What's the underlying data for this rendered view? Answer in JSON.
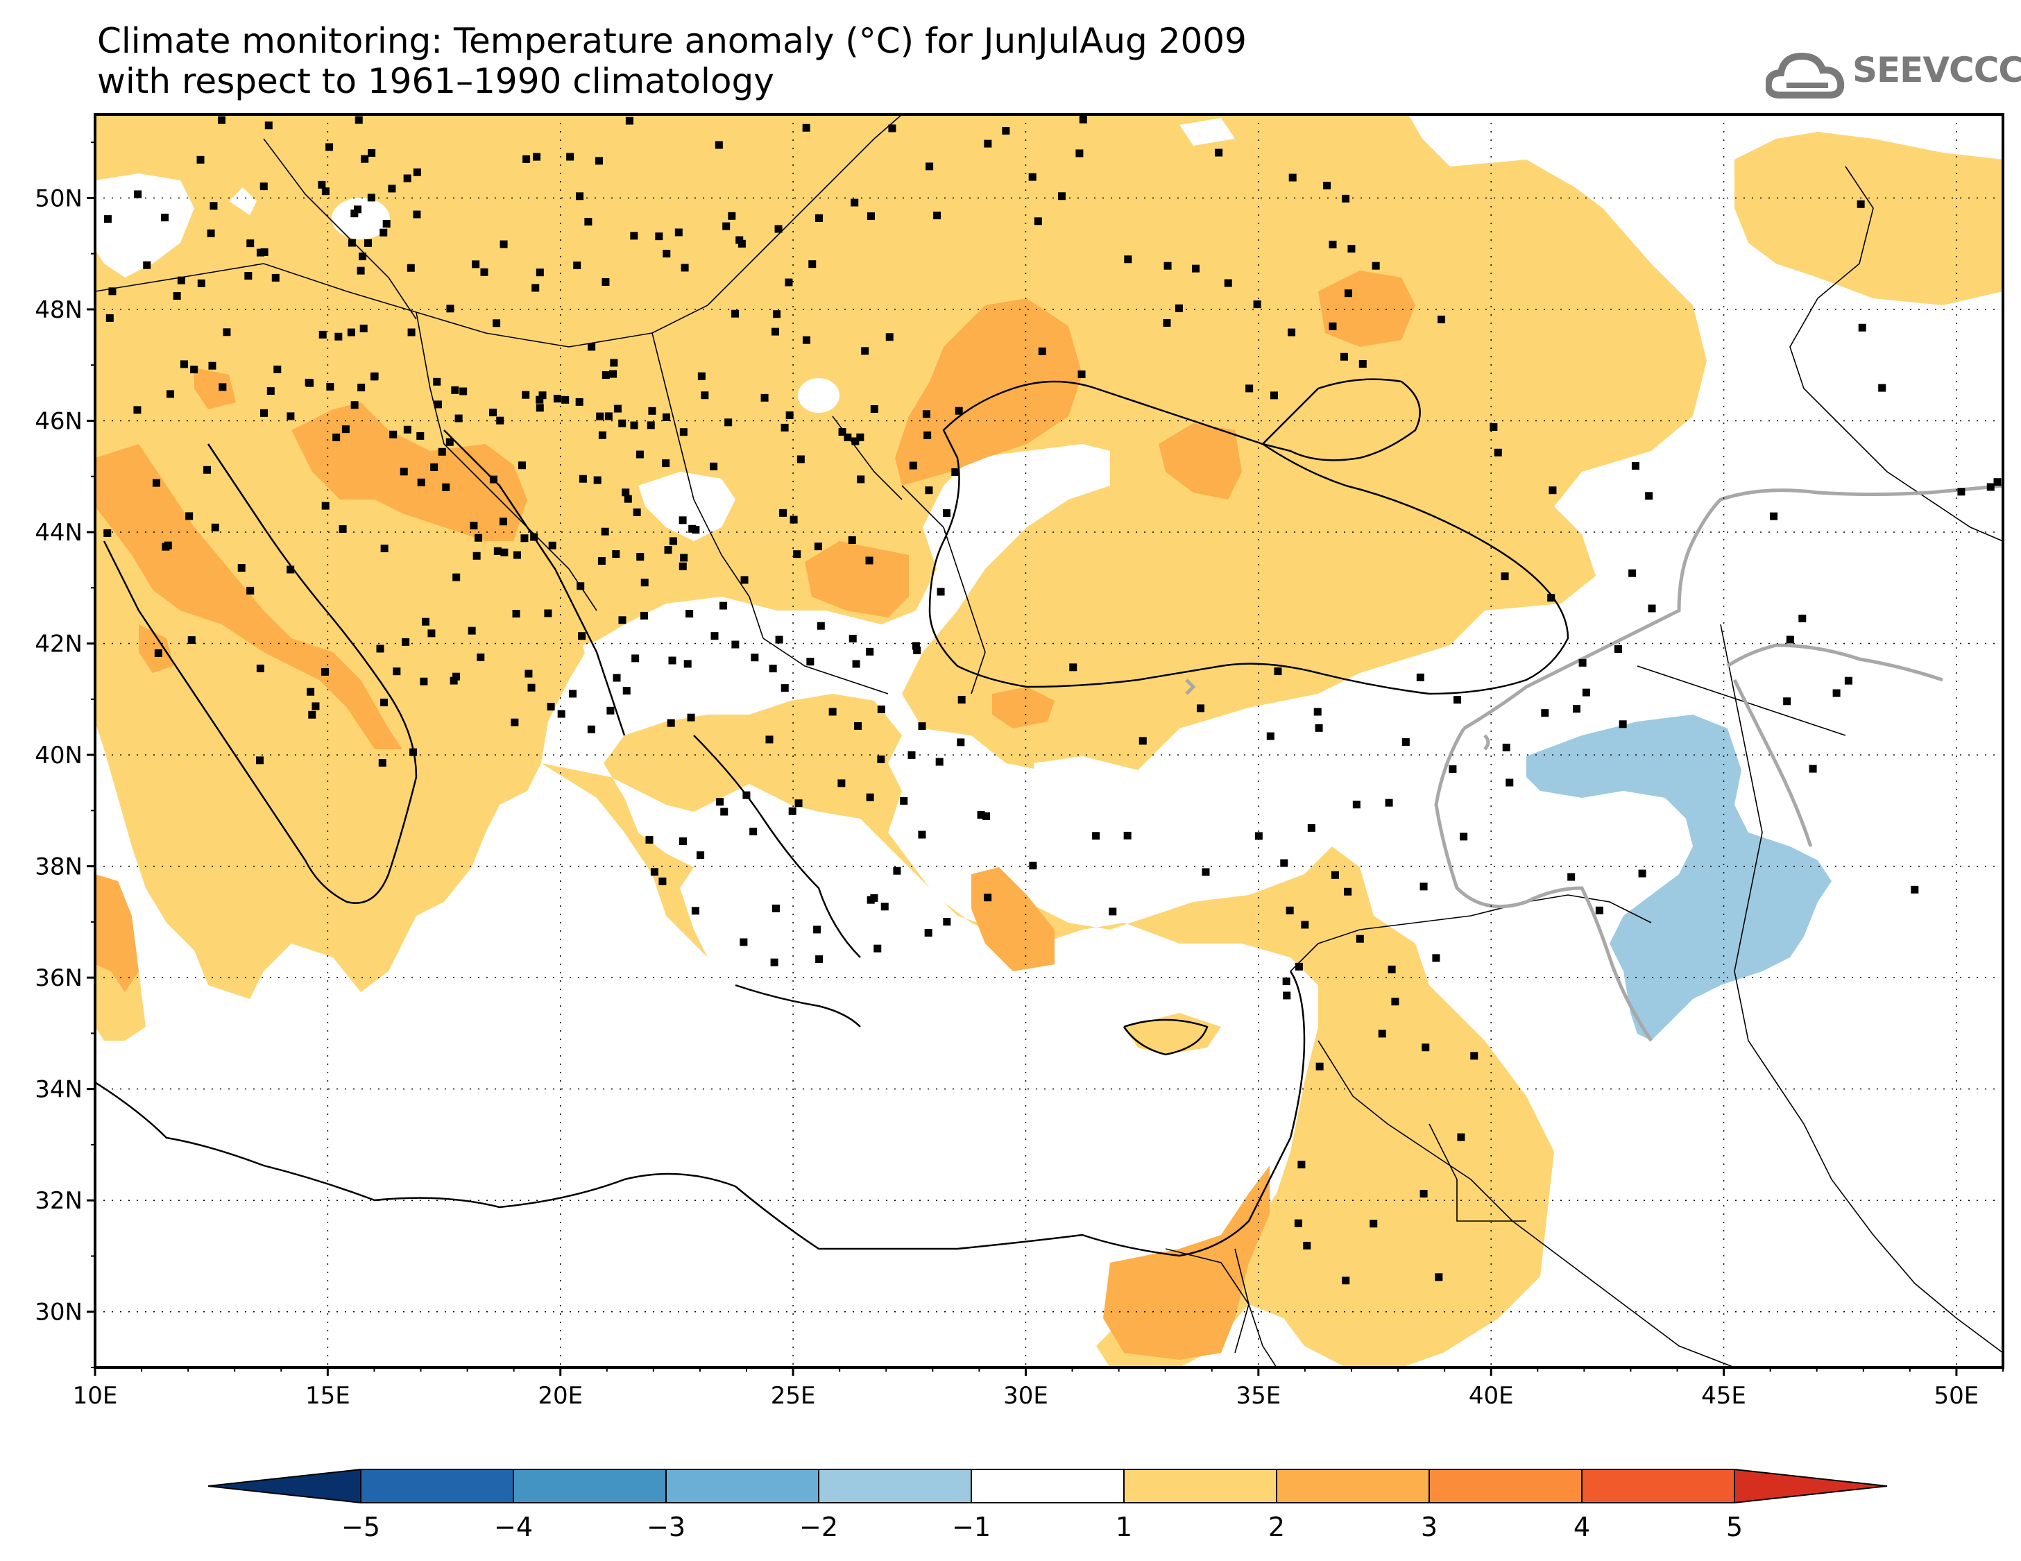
{
  "title": {
    "line1": "Climate monitoring: Temperature anomaly (°C) for JunJulAug 2009",
    "line2": "with respect to 1961–1990 climatology"
  },
  "logo": {
    "icon": "cloud-icon",
    "text": "SEEVCCC"
  },
  "axes": {
    "lon_labels": [
      "10E",
      "15E",
      "20E",
      "25E",
      "30E",
      "35E",
      "40E",
      "45E",
      "50E"
    ],
    "lat_labels": [
      "50N",
      "48N",
      "46N",
      "44N",
      "42N",
      "40N",
      "38N",
      "36N",
      "34N",
      "32N",
      "30N"
    ]
  },
  "colorbar": {
    "labels": [
      "−5",
      "−4",
      "−3",
      "−2",
      "−1",
      "1",
      "2",
      "3",
      "4",
      "5"
    ],
    "colors": [
      "#08306b",
      "#2166ac",
      "#4393c3",
      "#6baed6",
      "#9ecae1",
      "#ffffff",
      "#fdd673",
      "#fcaf4a",
      "#fb8c3a",
      "#f15a2b",
      "#d62f1f"
    ]
  },
  "colors": {
    "anom_1_2": "#fdd673",
    "anom_2_3": "#fcaf4a",
    "anom_neg_1_2": "#9ecae1",
    "coast": "#000000",
    "contour": "#a8a8a8",
    "station": "#000000"
  }
}
